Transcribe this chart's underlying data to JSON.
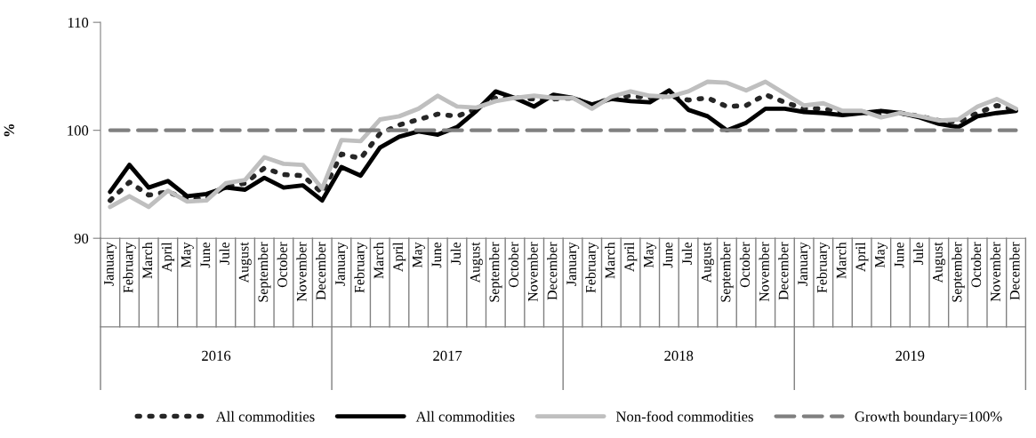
{
  "chart_data": {
    "type": "line",
    "ylabel": "%",
    "categories": [
      "January",
      "February",
      "March",
      "April",
      "May",
      "June",
      "Jule",
      "August",
      "September",
      "October",
      "November",
      "December",
      "January",
      "February",
      "March",
      "April",
      "May",
      "June",
      "Jule",
      "August",
      "September",
      "October",
      "November",
      "December",
      "January",
      "February",
      "March",
      "April",
      "May",
      "June",
      "Jule",
      "August",
      "September",
      "October",
      "November",
      "December",
      "January",
      "February",
      "March",
      "April",
      "May",
      "June",
      "Jule",
      "August",
      "September",
      "October",
      "November",
      "December"
    ],
    "series": [
      {
        "name": "All commodities",
        "color": "#262626",
        "line_style": "dotted",
        "values": [
          93.5,
          95.2,
          94.0,
          94.3,
          93.6,
          93.7,
          94.8,
          95.1,
          96.5,
          95.9,
          95.8,
          94.2,
          97.8,
          97.4,
          99.7,
          100.5,
          101.0,
          101.5,
          101.3,
          102.0,
          103.0,
          103.0,
          102.9,
          102.9,
          103.0,
          102.3,
          103.0,
          103.2,
          103.0,
          103.2,
          102.8,
          103.0,
          102.2,
          102.3,
          103.3,
          102.6,
          102.0,
          102.0,
          101.7,
          101.7,
          101.4,
          101.6,
          101.3,
          100.9,
          100.8,
          101.6,
          102.3,
          101.9
        ]
      },
      {
        "name": "All commodities",
        "color": "#000000",
        "line_style": "solid",
        "values": [
          94.3,
          96.8,
          94.7,
          95.3,
          93.9,
          94.1,
          94.7,
          94.5,
          95.6,
          94.7,
          94.9,
          93.5,
          96.6,
          95.8,
          98.4,
          99.4,
          99.9,
          99.6,
          100.3,
          101.8,
          103.6,
          103.0,
          102.2,
          103.3,
          103.0,
          102.4,
          102.9,
          102.7,
          102.6,
          103.7,
          101.9,
          101.3,
          100.0,
          100.7,
          102.0,
          102.0,
          101.7,
          101.6,
          101.4,
          101.6,
          101.8,
          101.6,
          101.2,
          100.6,
          100.3,
          101.3,
          101.6,
          101.8
        ]
      },
      {
        "name": "Non-food commodities",
        "color": "#bfbfbf",
        "line_style": "solid",
        "values": [
          92.9,
          93.9,
          92.9,
          94.4,
          93.4,
          93.5,
          95.1,
          95.4,
          97.5,
          96.9,
          96.8,
          94.6,
          99.1,
          99.0,
          101.0,
          101.3,
          102.0,
          103.2,
          102.2,
          102.1,
          102.7,
          103.0,
          103.2,
          103.0,
          103.0,
          102.0,
          103.1,
          103.6,
          103.2,
          103.1,
          103.6,
          104.5,
          104.4,
          103.7,
          104.5,
          103.4,
          102.3,
          102.5,
          101.8,
          101.8,
          101.2,
          101.6,
          101.3,
          100.9,
          101.0,
          102.2,
          102.9,
          102.0
        ]
      },
      {
        "name": "Growth boundary=100%",
        "color": "#808080",
        "line_style": "dashed",
        "values": [
          100,
          100,
          100,
          100,
          100,
          100,
          100,
          100,
          100,
          100,
          100,
          100,
          100,
          100,
          100,
          100,
          100,
          100,
          100,
          100,
          100,
          100,
          100,
          100,
          100,
          100,
          100,
          100,
          100,
          100,
          100,
          100,
          100,
          100,
          100,
          100,
          100,
          100,
          100,
          100,
          100,
          100,
          100,
          100,
          100,
          100,
          100,
          100
        ]
      }
    ],
    "annotations": [
      "2016",
      "2017",
      "2018",
      "2019"
    ],
    "ylim": [
      90,
      110
    ],
    "yticks": [
      90,
      100,
      110
    ],
    "grid": false,
    "legend": "bottom",
    "marker": "none"
  }
}
